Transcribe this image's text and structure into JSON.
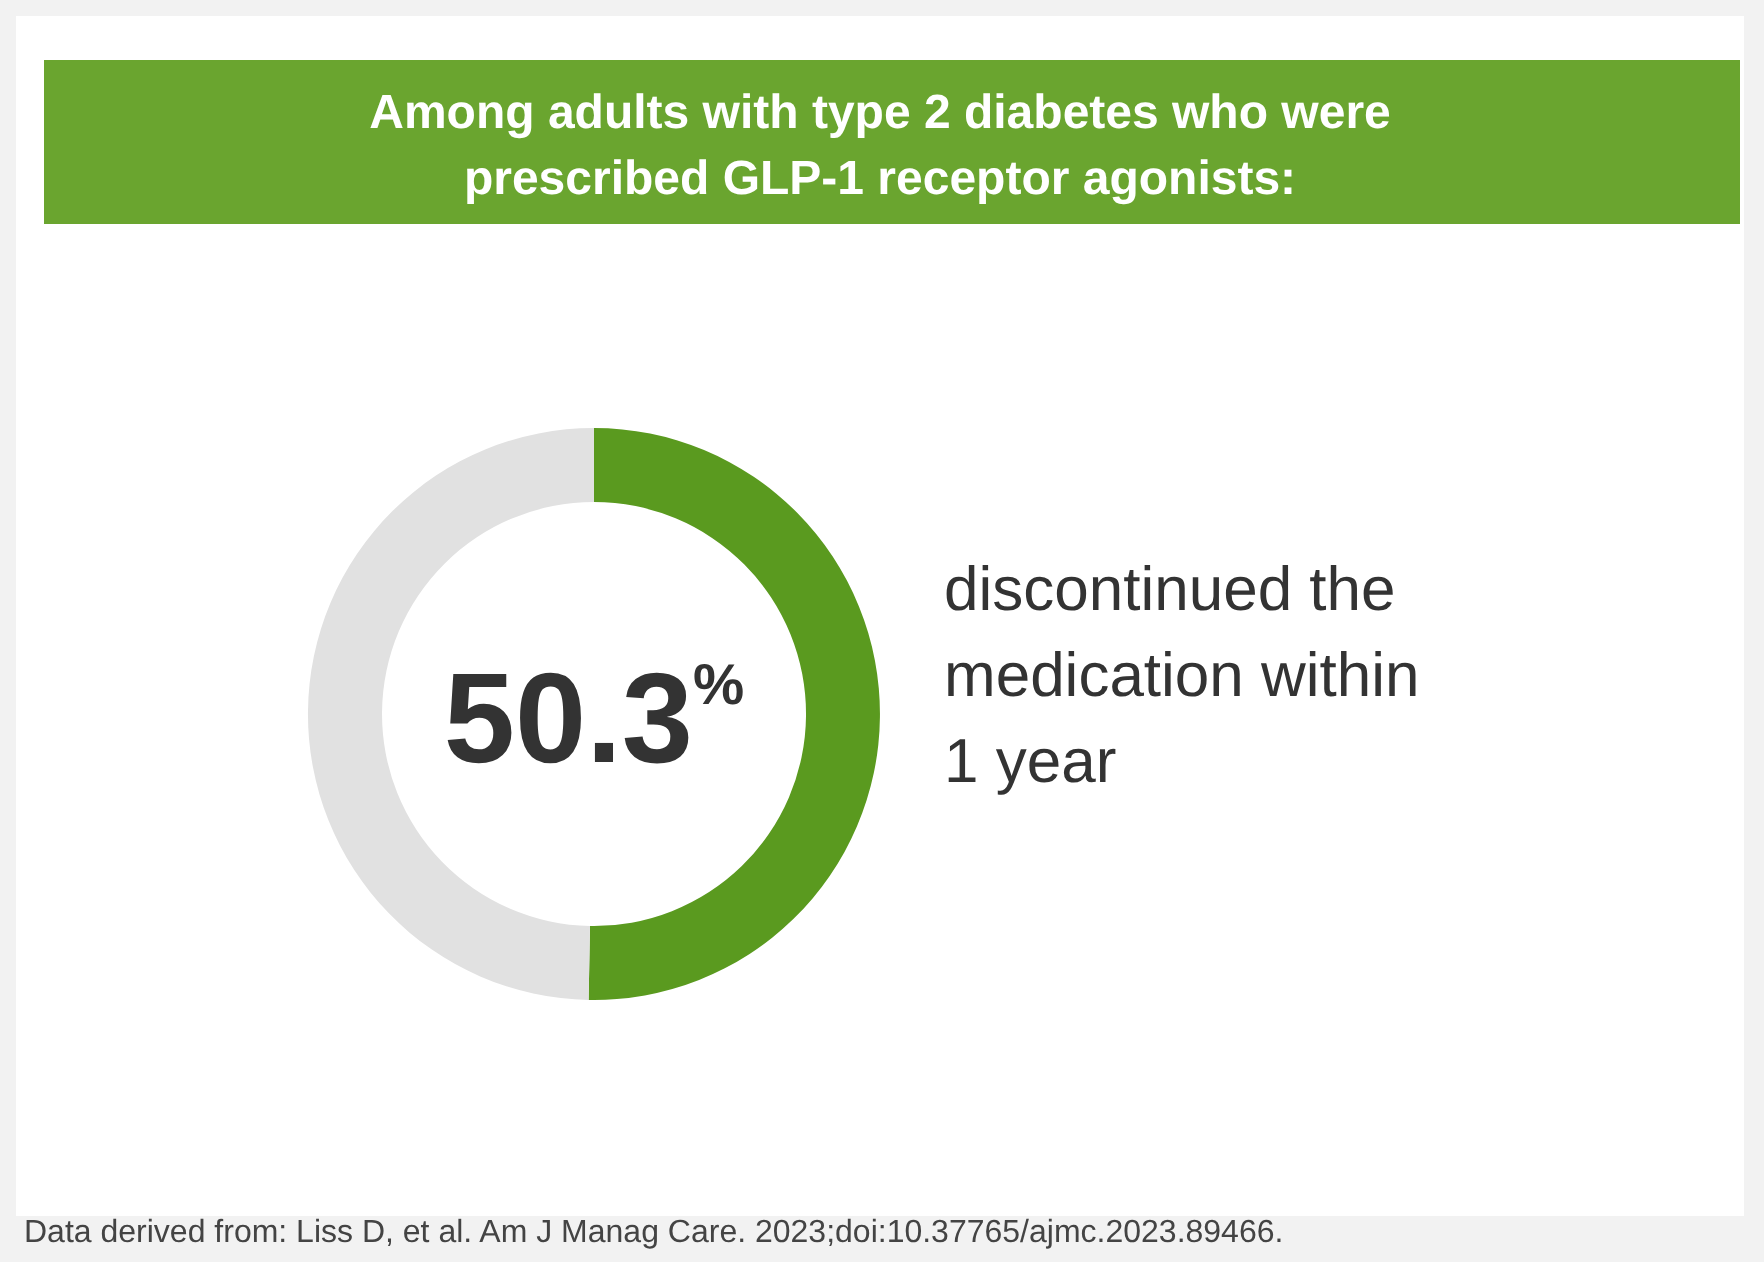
{
  "chart_data": {
    "type": "donut",
    "title": "Among adults with type 2 diabetes who were prescribed GLP-1 receptor agonists:",
    "categories": [
      "discontinued the medication within 1 year",
      null
    ],
    "values": [
      50.3,
      49.7
    ],
    "colors": [
      "#5a9a1f",
      "#e1e1e1"
    ],
    "value_labels": [
      "50.3$^{%}$",
      null
    ],
    "annotations": [
      "Data derived from: Liss D, et al. Am J Manag Care. 2023;doi:10.37765/ajmc.2023.89466."
    ]
  }
}
